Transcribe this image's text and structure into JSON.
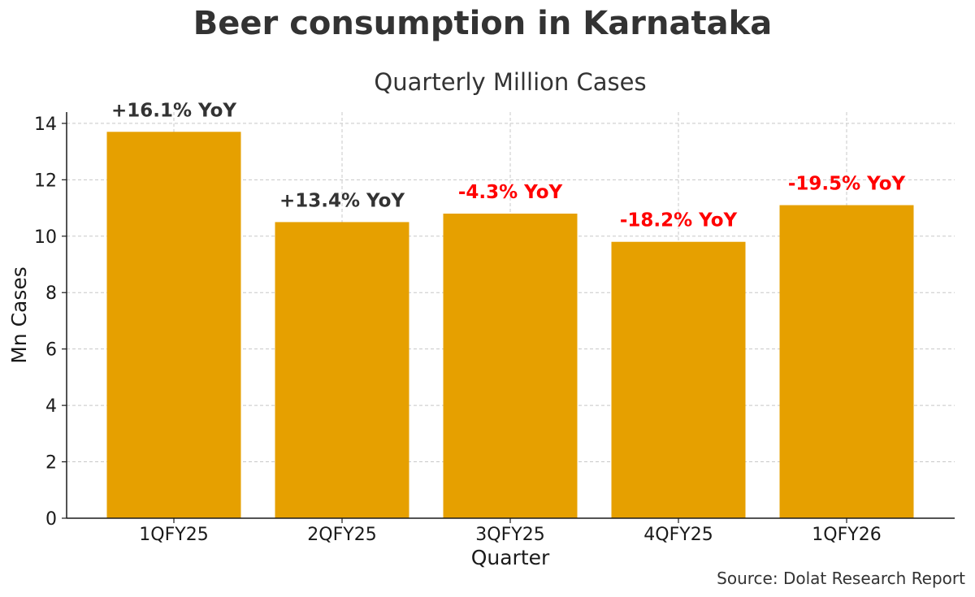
{
  "chart_data": {
    "type": "bar",
    "title": "Beer consumption in Karnataka",
    "subtitle": "Quarterly Million Cases",
    "xlabel": "Quarter",
    "ylabel": "Mn Cases",
    "categories": [
      "1QFY25",
      "2QFY25",
      "3QFY25",
      "4QFY25",
      "1QFY26"
    ],
    "values": [
      13.7,
      10.5,
      10.8,
      9.8,
      11.1
    ],
    "annotations": [
      "+16.1% YoY",
      "+13.4% YoY",
      "-4.3% YoY",
      "-18.2% YoY",
      "-19.5% YoY"
    ],
    "annotation_colors": [
      "#333333",
      "#333333",
      "#ff0000",
      "#ff0000",
      "#ff0000"
    ],
    "ylim": [
      0,
      14.4
    ],
    "yticks": [
      0,
      2,
      4,
      6,
      8,
      10,
      12,
      14
    ],
    "grid": true,
    "bar_color": "#e6a000",
    "source": "Source: Dolat Research Report"
  }
}
